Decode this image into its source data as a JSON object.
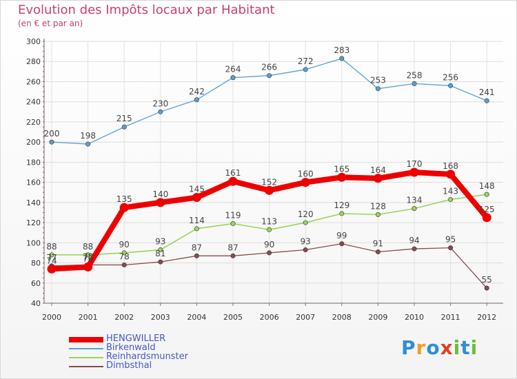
{
  "chart_data": {
    "type": "line",
    "title": "Evolution des Impôts locaux par Habitant",
    "subtitle": "(en € et par an)",
    "x": [
      "2000",
      "2001",
      "2002",
      "2003",
      "2004",
      "2005",
      "2006",
      "2007",
      "2008",
      "2009",
      "2010",
      "2011",
      "2012"
    ],
    "ylim": [
      40,
      300
    ],
    "yticks": [
      40,
      60,
      80,
      100,
      120,
      140,
      160,
      180,
      200,
      220,
      240,
      260,
      280,
      300
    ],
    "grid": true,
    "legend_position": "bottom-left",
    "series": [
      {
        "name": "HENGWILLER",
        "color": "#ee0000",
        "values": [
          74,
          76,
          135,
          140,
          145,
          161,
          152,
          160,
          165,
          164,
          170,
          168,
          125
        ]
      },
      {
        "name": "Birkenwald",
        "color": "#5aa0d2",
        "values": [
          200,
          198,
          215,
          230,
          242,
          264,
          266,
          272,
          283,
          253,
          258,
          256,
          241
        ]
      },
      {
        "name": "Reinhardsmunster",
        "color": "#9cd45a",
        "values": [
          88,
          88,
          90,
          93,
          114,
          119,
          113,
          120,
          129,
          128,
          134,
          143,
          148
        ]
      },
      {
        "name": "Dimbsthal",
        "color": "#8a4a4a",
        "values": [
          77,
          78,
          78,
          81,
          87,
          87,
          90,
          93,
          99,
          91,
          94,
          95,
          55
        ]
      }
    ]
  },
  "logo": {
    "text": "Proxiti",
    "letters": [
      "P",
      "r",
      "o",
      "x",
      "i",
      "t",
      "i"
    ],
    "colors": [
      "#2d8fd6",
      "#f0a020",
      "#2d8fd6",
      "#e04020",
      "#6cbf3c",
      "#2d8fd6",
      "#6cbf3c"
    ]
  }
}
